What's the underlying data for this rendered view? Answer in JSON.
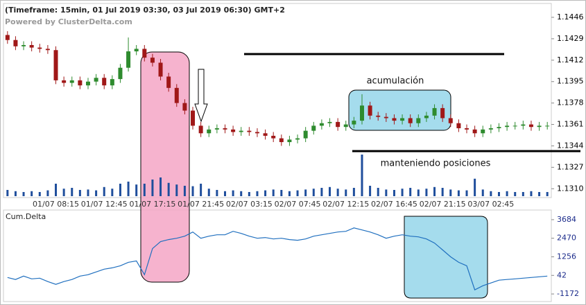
{
  "chart_data": [
    {
      "type": "candlestick",
      "title": "(Timeframe: 15min, 01 Jul 2019 03:30, 03 Jul 2019 06:30) GMT+2",
      "subtitle": "Powered by ClusterDelta.com",
      "annotations": [
        "acumulación",
        "manteniendo posiciones"
      ],
      "categories": [
        null,
        null,
        null,
        null,
        null,
        null,
        "01/07 08:15",
        null,
        null,
        null,
        null,
        null,
        "01/07 12:45",
        null,
        null,
        null,
        null,
        null,
        "01/07 17:15",
        null,
        null,
        null,
        null,
        null,
        "01/07 21:45",
        null,
        null,
        null,
        null,
        null,
        "02/07 03:15",
        null,
        null,
        null,
        null,
        null,
        "02/07 07:45",
        null,
        null,
        null,
        null,
        null,
        "02/07 12:15",
        null,
        null,
        null,
        null,
        null,
        "02/07 16:45",
        null,
        null,
        null,
        null,
        null,
        "02/07 21:15",
        null,
        null,
        null,
        null,
        null,
        "03/07 02:45",
        null,
        null,
        null,
        null,
        null,
        null,
        null
      ],
      "open": [
        1.1432,
        1.1428,
        1.1423,
        1.1424,
        1.1422,
        1.1421,
        1.142,
        1.1396,
        1.1394,
        1.1396,
        1.1392,
        1.1395,
        1.1398,
        1.1392,
        1.1397,
        1.1406,
        1.1419,
        1.1421,
        1.1414,
        1.141,
        1.1399,
        1.139,
        1.1378,
        1.1372,
        1.136,
        1.1354,
        1.1357,
        1.1358,
        1.1357,
        1.1355,
        1.1356,
        1.1355,
        1.1354,
        1.1352,
        1.135,
        1.1347,
        1.1349,
        1.135,
        1.1356,
        1.136,
        1.1362,
        1.1363,
        1.1359,
        1.1361,
        1.1364,
        1.1376,
        1.1368,
        1.1367,
        1.1366,
        1.1364,
        1.1366,
        1.1362,
        1.1366,
        1.1368,
        1.1374,
        1.1366,
        1.1362,
        1.1358,
        1.1357,
        1.1354,
        1.1357,
        1.1358,
        1.1359,
        1.136,
        1.136,
        1.1361,
        1.1359,
        1.136
      ],
      "high": [
        1.1435,
        1.1431,
        1.1427,
        1.1427,
        1.1425,
        1.1424,
        1.1423,
        1.1399,
        1.1399,
        1.1399,
        1.1398,
        1.1401,
        1.1401,
        1.14,
        1.1409,
        1.143,
        1.1424,
        1.1424,
        1.1417,
        1.1413,
        1.1402,
        1.1393,
        1.1381,
        1.1375,
        1.1363,
        1.136,
        1.1361,
        1.1361,
        1.136,
        1.1359,
        1.1359,
        1.1358,
        1.1357,
        1.1355,
        1.1353,
        1.1352,
        1.1353,
        1.1359,
        1.1363,
        1.1365,
        1.1366,
        1.1366,
        1.1364,
        1.1367,
        1.1385,
        1.1379,
        1.1371,
        1.137,
        1.1369,
        1.1369,
        1.1369,
        1.1369,
        1.1371,
        1.1377,
        1.1377,
        1.1369,
        1.1365,
        1.1361,
        1.136,
        1.136,
        1.1361,
        1.1362,
        1.1363,
        1.1363,
        1.1364,
        1.1364,
        1.1363,
        1.1363
      ],
      "low": [
        1.1425,
        1.142,
        1.142,
        1.1419,
        1.1418,
        1.1417,
        1.1393,
        1.1391,
        1.1391,
        1.1389,
        1.1389,
        1.1392,
        1.1389,
        1.1389,
        1.1394,
        1.1403,
        1.1416,
        1.1411,
        1.1407,
        1.1396,
        1.1387,
        1.1375,
        1.1369,
        1.1357,
        1.1351,
        1.1351,
        1.1354,
        1.1354,
        1.1352,
        1.1352,
        1.1352,
        1.1351,
        1.1349,
        1.1347,
        1.1344,
        1.1344,
        1.1346,
        1.1347,
        1.1353,
        1.1357,
        1.1359,
        1.1356,
        1.1356,
        1.1358,
        1.1361,
        1.1365,
        1.1364,
        1.1363,
        1.1361,
        1.1361,
        1.1359,
        1.1359,
        1.1363,
        1.1365,
        1.1363,
        1.1359,
        1.1355,
        1.1354,
        1.1351,
        1.1351,
        1.1354,
        1.1355,
        1.1356,
        1.1357,
        1.1357,
        1.1356,
        1.1356,
        1.1357
      ],
      "close": [
        1.1428,
        1.1423,
        1.1424,
        1.1422,
        1.1421,
        1.142,
        1.1396,
        1.1394,
        1.1396,
        1.1392,
        1.1395,
        1.1398,
        1.1392,
        1.1397,
        1.1406,
        1.1419,
        1.1421,
        1.1414,
        1.141,
        1.1399,
        1.139,
        1.1378,
        1.1372,
        1.136,
        1.1354,
        1.1357,
        1.1358,
        1.1357,
        1.1355,
        1.1356,
        1.1355,
        1.1354,
        1.1352,
        1.135,
        1.1347,
        1.1349,
        1.135,
        1.1356,
        1.136,
        1.1362,
        1.1363,
        1.1359,
        1.1361,
        1.1364,
        1.1376,
        1.1368,
        1.1367,
        1.1366,
        1.1364,
        1.1366,
        1.1362,
        1.1366,
        1.1368,
        1.1374,
        1.1366,
        1.1362,
        1.1358,
        1.1357,
        1.1354,
        1.1357,
        1.1358,
        1.1359,
        1.136,
        1.136,
        1.1361,
        1.1359,
        1.136,
        1.136
      ],
      "volume": [
        15,
        12,
        10,
        12,
        10,
        14,
        30,
        18,
        20,
        15,
        16,
        14,
        22,
        18,
        30,
        35,
        28,
        30,
        40,
        45,
        32,
        28,
        25,
        24,
        30,
        18,
        15,
        12,
        14,
        12,
        10,
        12,
        14,
        16,
        15,
        12,
        14,
        16,
        18,
        20,
        22,
        18,
        16,
        20,
        100,
        25,
        20,
        16,
        15,
        18,
        20,
        16,
        18,
        22,
        20,
        16,
        14,
        14,
        42,
        16,
        12,
        10,
        12,
        10,
        10,
        12,
        10,
        10
      ],
      "volume_ylim": [
        0,
        100
      ],
      "up_color": "#2e8b2e",
      "down_color": "#a01818",
      "volume_color": "#1f4e9c",
      "ylim": [
        1.1303,
        1.1457
      ],
      "yticks": [
        {
          "value": 1.131,
          "label": "1.1310"
        },
        1.1327,
        1.1344,
        1.1361,
        1.1378,
        1.1395,
        1.1412,
        1.1429,
        1.1446
      ]
    },
    {
      "type": "line",
      "title": "Cum.Delta",
      "color": "#1f6fbf",
      "values": [
        -93,
        -228,
        -3,
        -183,
        -138,
        -363,
        -543,
        -363,
        -228,
        -3,
        87,
        267,
        447,
        537,
        672,
        897,
        987,
        87,
        1797,
        2247,
        2382,
        2472,
        2607,
        2877,
        2472,
        2607,
        2697,
        2697,
        2922,
        2787,
        2607,
        2472,
        2517,
        2427,
        2472,
        2382,
        2337,
        2427,
        2607,
        2697,
        2787,
        2877,
        2922,
        3147,
        3012,
        2877,
        2697,
        2472,
        2607,
        2697,
        2607,
        2562,
        2427,
        2157,
        1707,
        1257,
        897,
        672,
        -903,
        -633,
        -453,
        -273,
        -228,
        -183,
        -138,
        -93,
        -48,
        -3
      ],
      "ylim": [
        -1667,
        4224
      ],
      "yticks": [
        -1172,
        42,
        1256,
        2470,
        3684
      ]
    }
  ]
}
